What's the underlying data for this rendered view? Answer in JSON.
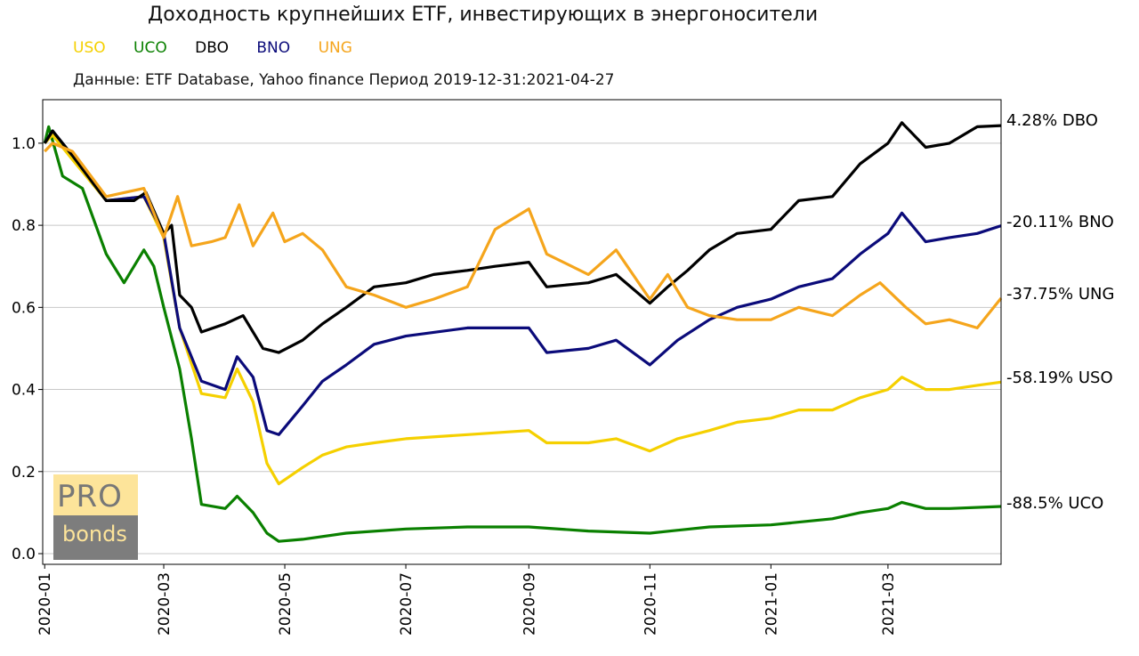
{
  "title": "Доходность крупнейших ETF, инвестирующих в энергоносители",
  "subtitle": "Данные: ETF Database, Yahoo finance Период 2019-12-31:2021-04-27",
  "logo": {
    "top": "PRO",
    "bottom": "bonds"
  },
  "chart_data": {
    "type": "line",
    "title": "Доходность крупнейших ETF, инвестирующих в энергоносители",
    "xlabel": "",
    "ylabel": "",
    "xlim": [
      "2019-12-31",
      "2021-04-27"
    ],
    "ylim": [
      -0.026,
      1.106
    ],
    "grid": "horizontal",
    "legend_position": "top-left",
    "yticks": [
      "0.0",
      "0.2",
      "0.4",
      "0.6",
      "0.8",
      "1.0"
    ],
    "xticks": [
      "2020-01",
      "2020-03",
      "2020-05",
      "2020-07",
      "2020-09",
      "2020-11",
      "2021-01",
      "2021-03"
    ],
    "series": [
      {
        "name": "USO",
        "color": "#f5d000",
        "end_label": "-58.19% USO",
        "points": [
          [
            "2020-01-01",
            1.0
          ],
          [
            "2020-01-05",
            1.02
          ],
          [
            "2020-01-15",
            0.96
          ],
          [
            "2020-02-01",
            0.86
          ],
          [
            "2020-02-20",
            0.87
          ],
          [
            "2020-03-01",
            0.77
          ],
          [
            "2020-03-09",
            0.55
          ],
          [
            "2020-03-20",
            0.39
          ],
          [
            "2020-04-01",
            0.38
          ],
          [
            "2020-04-07",
            0.45
          ],
          [
            "2020-04-15",
            0.37
          ],
          [
            "2020-04-22",
            0.22
          ],
          [
            "2020-04-28",
            0.17
          ],
          [
            "2020-05-10",
            0.21
          ],
          [
            "2020-05-20",
            0.24
          ],
          [
            "2020-06-01",
            0.26
          ],
          [
            "2020-06-15",
            0.27
          ],
          [
            "2020-07-01",
            0.28
          ],
          [
            "2020-08-01",
            0.29
          ],
          [
            "2020-09-01",
            0.3
          ],
          [
            "2020-09-10",
            0.27
          ],
          [
            "2020-10-01",
            0.27
          ],
          [
            "2020-10-15",
            0.28
          ],
          [
            "2020-11-01",
            0.25
          ],
          [
            "2020-11-15",
            0.28
          ],
          [
            "2020-12-01",
            0.3
          ],
          [
            "2020-12-15",
            0.32
          ],
          [
            "2021-01-01",
            0.33
          ],
          [
            "2021-01-15",
            0.35
          ],
          [
            "2021-02-01",
            0.35
          ],
          [
            "2021-02-15",
            0.38
          ],
          [
            "2021-03-01",
            0.4
          ],
          [
            "2021-03-08",
            0.43
          ],
          [
            "2021-03-20",
            0.4
          ],
          [
            "2021-04-01",
            0.4
          ],
          [
            "2021-04-15",
            0.41
          ],
          [
            "2021-04-27",
            0.418
          ]
        ]
      },
      {
        "name": "UCO",
        "color": "#0a8000",
        "end_label": "-88.5% UCO",
        "points": [
          [
            "2020-01-01",
            1.0
          ],
          [
            "2020-01-03",
            1.04
          ],
          [
            "2020-01-10",
            0.92
          ],
          [
            "2020-01-20",
            0.89
          ],
          [
            "2020-02-01",
            0.73
          ],
          [
            "2020-02-10",
            0.66
          ],
          [
            "2020-02-20",
            0.74
          ],
          [
            "2020-02-25",
            0.7
          ],
          [
            "2020-03-01",
            0.6
          ],
          [
            "2020-03-09",
            0.45
          ],
          [
            "2020-03-15",
            0.28
          ],
          [
            "2020-03-20",
            0.12
          ],
          [
            "2020-04-01",
            0.11
          ],
          [
            "2020-04-07",
            0.14
          ],
          [
            "2020-04-15",
            0.1
          ],
          [
            "2020-04-22",
            0.05
          ],
          [
            "2020-04-28",
            0.03
          ],
          [
            "2020-05-10",
            0.035
          ],
          [
            "2020-06-01",
            0.05
          ],
          [
            "2020-07-01",
            0.06
          ],
          [
            "2020-08-01",
            0.065
          ],
          [
            "2020-09-01",
            0.065
          ],
          [
            "2020-10-01",
            0.055
          ],
          [
            "2020-11-01",
            0.05
          ],
          [
            "2020-12-01",
            0.065
          ],
          [
            "2021-01-01",
            0.07
          ],
          [
            "2021-02-01",
            0.085
          ],
          [
            "2021-02-15",
            0.1
          ],
          [
            "2021-03-01",
            0.11
          ],
          [
            "2021-03-08",
            0.125
          ],
          [
            "2021-03-20",
            0.11
          ],
          [
            "2021-04-01",
            0.11
          ],
          [
            "2021-04-27",
            0.115
          ]
        ]
      },
      {
        "name": "DBO",
        "color": "#000000",
        "end_label": "4.28% DBO",
        "points": [
          [
            "2020-01-01",
            1.0
          ],
          [
            "2020-01-05",
            1.03
          ],
          [
            "2020-01-15",
            0.97
          ],
          [
            "2020-02-01",
            0.86
          ],
          [
            "2020-02-15",
            0.86
          ],
          [
            "2020-02-21",
            0.88
          ],
          [
            "2020-03-01",
            0.78
          ],
          [
            "2020-03-05",
            0.8
          ],
          [
            "2020-03-09",
            0.63
          ],
          [
            "2020-03-15",
            0.6
          ],
          [
            "2020-03-20",
            0.54
          ],
          [
            "2020-04-01",
            0.56
          ],
          [
            "2020-04-10",
            0.58
          ],
          [
            "2020-04-20",
            0.5
          ],
          [
            "2020-04-28",
            0.49
          ],
          [
            "2020-05-10",
            0.52
          ],
          [
            "2020-05-20",
            0.56
          ],
          [
            "2020-06-01",
            0.6
          ],
          [
            "2020-06-15",
            0.65
          ],
          [
            "2020-07-01",
            0.66
          ],
          [
            "2020-07-15",
            0.68
          ],
          [
            "2020-08-01",
            0.69
          ],
          [
            "2020-08-15",
            0.7
          ],
          [
            "2020-09-01",
            0.71
          ],
          [
            "2020-09-10",
            0.65
          ],
          [
            "2020-10-01",
            0.66
          ],
          [
            "2020-10-15",
            0.68
          ],
          [
            "2020-11-01",
            0.61
          ],
          [
            "2020-11-10",
            0.65
          ],
          [
            "2020-11-20",
            0.69
          ],
          [
            "2020-12-01",
            0.74
          ],
          [
            "2020-12-15",
            0.78
          ],
          [
            "2021-01-01",
            0.79
          ],
          [
            "2021-01-15",
            0.86
          ],
          [
            "2021-02-01",
            0.87
          ],
          [
            "2021-02-15",
            0.95
          ],
          [
            "2021-03-01",
            1.0
          ],
          [
            "2021-03-08",
            1.05
          ],
          [
            "2021-03-20",
            0.99
          ],
          [
            "2021-04-01",
            1.0
          ],
          [
            "2021-04-15",
            1.04
          ],
          [
            "2021-04-27",
            1.0428
          ]
        ]
      },
      {
        "name": "BNO",
        "color": "#0b0b7a",
        "end_label": "-20.11% BNO",
        "points": [
          [
            "2020-01-01",
            1.0
          ],
          [
            "2020-01-05",
            1.03
          ],
          [
            "2020-01-15",
            0.97
          ],
          [
            "2020-02-01",
            0.86
          ],
          [
            "2020-02-20",
            0.87
          ],
          [
            "2020-03-01",
            0.78
          ],
          [
            "2020-03-09",
            0.55
          ],
          [
            "2020-03-20",
            0.42
          ],
          [
            "2020-04-01",
            0.4
          ],
          [
            "2020-04-07",
            0.48
          ],
          [
            "2020-04-15",
            0.43
          ],
          [
            "2020-04-22",
            0.3
          ],
          [
            "2020-04-28",
            0.29
          ],
          [
            "2020-05-10",
            0.36
          ],
          [
            "2020-05-20",
            0.42
          ],
          [
            "2020-06-01",
            0.46
          ],
          [
            "2020-06-15",
            0.51
          ],
          [
            "2020-07-01",
            0.53
          ],
          [
            "2020-08-01",
            0.55
          ],
          [
            "2020-09-01",
            0.55
          ],
          [
            "2020-09-10",
            0.49
          ],
          [
            "2020-10-01",
            0.5
          ],
          [
            "2020-10-15",
            0.52
          ],
          [
            "2020-11-01",
            0.46
          ],
          [
            "2020-11-15",
            0.52
          ],
          [
            "2020-12-01",
            0.57
          ],
          [
            "2020-12-15",
            0.6
          ],
          [
            "2021-01-01",
            0.62
          ],
          [
            "2021-01-15",
            0.65
          ],
          [
            "2021-02-01",
            0.67
          ],
          [
            "2021-02-15",
            0.73
          ],
          [
            "2021-03-01",
            0.78
          ],
          [
            "2021-03-08",
            0.83
          ],
          [
            "2021-03-20",
            0.76
          ],
          [
            "2021-04-01",
            0.77
          ],
          [
            "2021-04-15",
            0.78
          ],
          [
            "2021-04-27",
            0.7989
          ]
        ]
      },
      {
        "name": "UNG",
        "color": "#f5a51c",
        "end_label": "-37.75% UNG",
        "points": [
          [
            "2020-01-01",
            0.98
          ],
          [
            "2020-01-05",
            1.0
          ],
          [
            "2020-01-15",
            0.98
          ],
          [
            "2020-02-01",
            0.87
          ],
          [
            "2020-02-20",
            0.89
          ],
          [
            "2020-03-01",
            0.77
          ],
          [
            "2020-03-08",
            0.87
          ],
          [
            "2020-03-15",
            0.75
          ],
          [
            "2020-03-25",
            0.76
          ],
          [
            "2020-04-01",
            0.77
          ],
          [
            "2020-04-08",
            0.85
          ],
          [
            "2020-04-15",
            0.75
          ],
          [
            "2020-04-25",
            0.83
          ],
          [
            "2020-05-01",
            0.76
          ],
          [
            "2020-05-10",
            0.78
          ],
          [
            "2020-05-20",
            0.74
          ],
          [
            "2020-06-01",
            0.65
          ],
          [
            "2020-06-15",
            0.63
          ],
          [
            "2020-07-01",
            0.6
          ],
          [
            "2020-07-15",
            0.62
          ],
          [
            "2020-08-01",
            0.65
          ],
          [
            "2020-08-15",
            0.79
          ],
          [
            "2020-09-01",
            0.84
          ],
          [
            "2020-09-10",
            0.73
          ],
          [
            "2020-10-01",
            0.68
          ],
          [
            "2020-10-15",
            0.74
          ],
          [
            "2020-11-01",
            0.62
          ],
          [
            "2020-11-10",
            0.68
          ],
          [
            "2020-11-20",
            0.6
          ],
          [
            "2020-12-01",
            0.58
          ],
          [
            "2020-12-15",
            0.57
          ],
          [
            "2021-01-01",
            0.57
          ],
          [
            "2021-01-15",
            0.6
          ],
          [
            "2021-02-01",
            0.58
          ],
          [
            "2021-02-15",
            0.63
          ],
          [
            "2021-02-25",
            0.66
          ],
          [
            "2021-03-10",
            0.6
          ],
          [
            "2021-03-20",
            0.56
          ],
          [
            "2021-04-01",
            0.57
          ],
          [
            "2021-04-15",
            0.55
          ],
          [
            "2021-04-27",
            0.6225
          ]
        ]
      }
    ]
  }
}
